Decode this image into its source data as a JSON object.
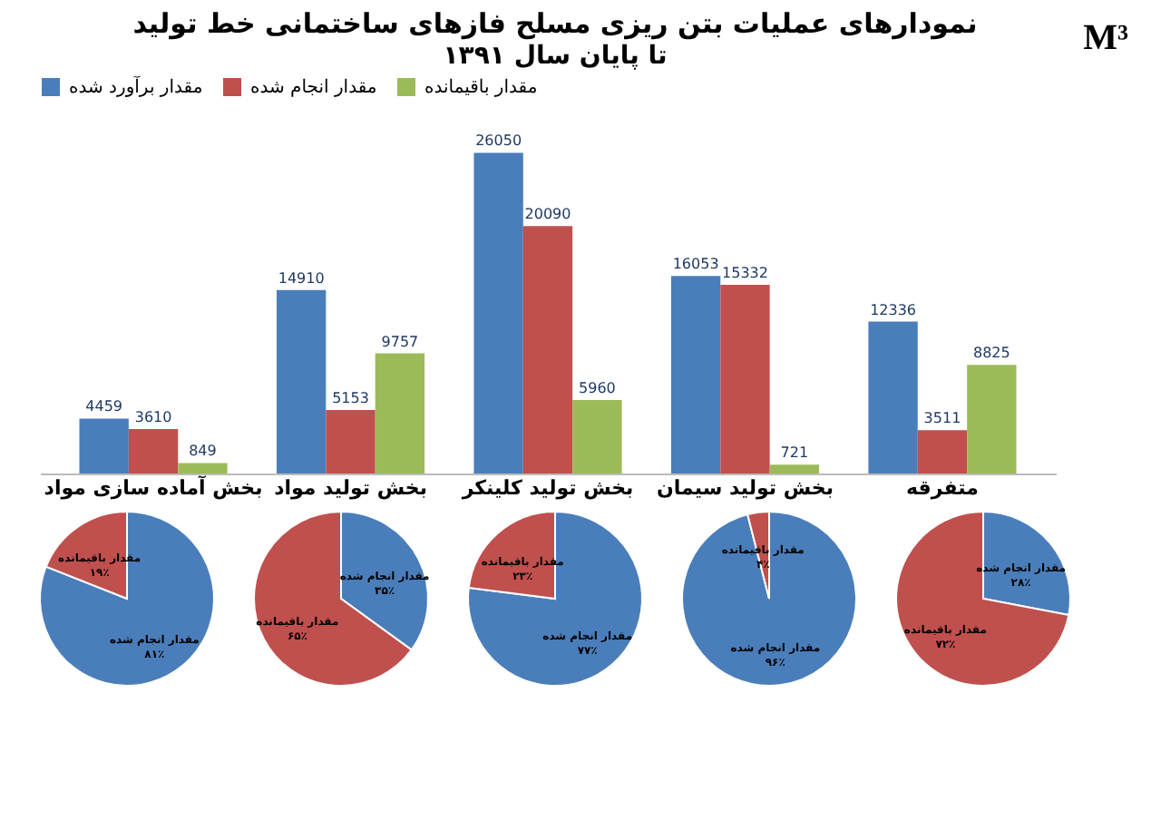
{
  "chart_data": [
    {
      "type": "bar",
      "title": "نمودارهای عملیات بتن ریزی مسلح فازهای ساختمانی خط تولید",
      "subtitle": "تا پایان سال ۱۳۹۱",
      "annotations": [
        "M³"
      ],
      "categories": [
        "بخش آماده سازی مواد",
        "بخش تولید مواد",
        "بخش تولید کلینکر",
        "بخش تولید سیمان",
        "متفرقه"
      ],
      "series": [
        {
          "name": "مقدار برآورد شده",
          "color": "#4a7ebb",
          "values": [
            4459,
            14910,
            26050,
            16053,
            12336
          ]
        },
        {
          "name": "مقدار انجام شده",
          "color": "#c0504d",
          "values": [
            3610,
            5153,
            20090,
            15332,
            3511
          ]
        },
        {
          "name": "مقدار باقیمانده",
          "color": "#9bbb59",
          "values": [
            849,
            9757,
            5960,
            721,
            8825
          ]
        }
      ],
      "data_labels": true,
      "legend": "top",
      "tick_labels": "x",
      "grid": false
    },
    {
      "type": "pie",
      "categories": [
        "مقدار انجام شده",
        "مقدار باقیمانده"
      ],
      "values": [
        81,
        19
      ],
      "colors": [
        "#4a7ebb",
        "#c0504d"
      ],
      "value_labels": [
        "۸۱٪",
        "۱۹٪"
      ]
    },
    {
      "type": "pie",
      "categories": [
        "مقدار انجام شده",
        "مقدار باقیمانده"
      ],
      "values": [
        35,
        65
      ],
      "colors": [
        "#4a7ebb",
        "#c0504d"
      ],
      "value_labels": [
        "۳۵٪",
        "۶۵٪"
      ]
    },
    {
      "type": "pie",
      "categories": [
        "مقدار انجام شده",
        "مقدار باقیمانده"
      ],
      "values": [
        77,
        23
      ],
      "colors": [
        "#4a7ebb",
        "#c0504d"
      ],
      "value_labels": [
        "۷۷٪",
        "۲۳٪"
      ]
    },
    {
      "type": "pie",
      "categories": [
        "مقدار انجام شده",
        "مقدار باقیمانده"
      ],
      "values": [
        96,
        4
      ],
      "colors": [
        "#4a7ebb",
        "#c0504d"
      ],
      "value_labels": [
        "۹۶٪",
        "۴٪"
      ]
    },
    {
      "type": "pie",
      "categories": [
        "مقدار انجام شده",
        "مقدار باقیمانده"
      ],
      "values": [
        28,
        72
      ],
      "colors": [
        "#4a7ebb",
        "#c0504d"
      ],
      "value_labels": [
        "۲۸٪",
        "۷۲٪"
      ]
    }
  ]
}
